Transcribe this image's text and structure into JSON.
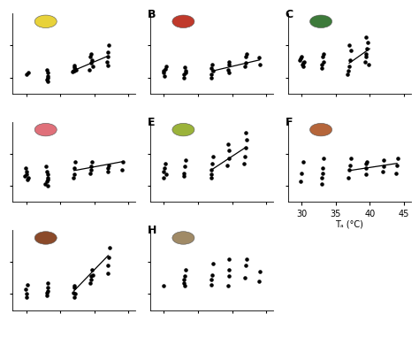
{
  "chart_data": [
    {
      "type": "scatter",
      "xlim": [
        28,
        46
      ],
      "ylim": [
        0,
        10
      ],
      "xticks": [
        30,
        35,
        40,
        45
      ],
      "yticks": [
        2,
        6
      ],
      "tick_labels": false,
      "series": [
        {
          "type": "scatter",
          "color": "#000000",
          "marker": "o",
          "x": [
            30.0,
            30.3,
            33.0,
            33.1,
            33.2,
            33.0,
            33.1,
            33.2,
            36.8,
            37.0,
            37.2,
            37.1,
            36.9,
            37.3,
            37.0,
            39.3,
            39.5,
            39.6,
            39.4,
            39.5,
            39.7,
            41.8,
            42.0,
            42.1,
            41.9,
            42.0
          ],
          "values": [
            2.4,
            2.6,
            1.8,
            2.2,
            2.6,
            3.0,
            2.0,
            1.5,
            2.7,
            2.9,
            3.1,
            3.3,
            2.8,
            3.0,
            3.5,
            3.0,
            3.8,
            4.2,
            4.6,
            5.0,
            3.4,
            4.0,
            5.2,
            6.0,
            4.6,
            3.5
          ]
        },
        {
          "type": "line",
          "color": "#000000",
          "line_style": "solid",
          "x": [
            37,
            42
          ],
          "values": [
            2.9,
            4.7
          ]
        }
      ]
    },
    {
      "type": "scatter",
      "title": "B",
      "xlim": [
        28,
        46
      ],
      "ylim": [
        0,
        10
      ],
      "xticks": [
        30,
        35,
        40,
        45
      ],
      "yticks": [
        2,
        6
      ],
      "tick_labels": false,
      "series": [
        {
          "type": "scatter",
          "color": "#000000",
          "marker": "o",
          "x": [
            30.0,
            30.2,
            30.4,
            29.9,
            30.1,
            33.0,
            33.2,
            33.1,
            33.0,
            33.2,
            37.0,
            37.2,
            36.9,
            37.1,
            37.0,
            39.4,
            39.6,
            39.5,
            39.5,
            41.9,
            42.0,
            42.1,
            42.0,
            44.0,
            44.1
          ],
          "values": [
            2.6,
            3.1,
            3.4,
            2.8,
            2.2,
            2.4,
            2.9,
            3.3,
            2.0,
            2.6,
            2.4,
            2.8,
            3.2,
            3.6,
            2.0,
            3.0,
            3.6,
            4.0,
            2.6,
            3.4,
            4.6,
            5.0,
            3.8,
            4.5,
            3.6
          ]
        },
        {
          "type": "line",
          "color": "#000000",
          "line_style": "solid",
          "x": [
            37,
            44
          ],
          "values": [
            2.8,
            4.2
          ]
        }
      ]
    },
    {
      "type": "scatter",
      "title": "C",
      "xlim": [
        28,
        46
      ],
      "ylim": [
        0,
        10
      ],
      "xticks": [
        30,
        35,
        40,
        45
      ],
      "yticks": [
        2,
        6
      ],
      "tick_labels": false,
      "series": [
        {
          "type": "scatter",
          "color": "#000000",
          "marker": "o",
          "x": [
            29.8,
            30.0,
            30.2,
            30.4,
            30.1,
            29.9,
            30.3,
            33.0,
            33.1,
            33.2,
            33.0,
            33.2,
            36.9,
            37.0,
            37.1,
            37.2,
            37.0,
            36.8,
            39.3,
            39.5,
            39.6,
            39.7,
            39.4,
            39.5,
            39.8
          ],
          "values": [
            4.2,
            4.6,
            3.8,
            4.0,
            3.6,
            4.4,
            3.4,
            3.6,
            4.6,
            5.0,
            3.2,
            4.0,
            2.8,
            3.4,
            4.2,
            5.4,
            6.0,
            2.4,
            4.0,
            5.0,
            5.6,
            6.4,
            4.6,
            7.0,
            3.6
          ]
        },
        {
          "type": "line",
          "color": "#000000",
          "line_style": "solid",
          "x": [
            37,
            40
          ],
          "values": [
            3.8,
            5.6
          ]
        }
      ]
    },
    {
      "type": "scatter",
      "xlim": [
        28,
        46
      ],
      "ylim": [
        0,
        10
      ],
      "xticks": [
        30,
        35,
        40,
        45
      ],
      "yticks": [
        2,
        6
      ],
      "tick_labels": false,
      "series": [
        {
          "type": "scatter",
          "color": "#000000",
          "marker": "o",
          "x": [
            29.8,
            30.0,
            30.2,
            30.1,
            29.9,
            30.3,
            32.8,
            33.0,
            33.1,
            33.2,
            33.0,
            33.1,
            32.9,
            33.2,
            37.0,
            37.1,
            37.2,
            36.9,
            39.4,
            39.5,
            39.6,
            39.5,
            42.0,
            42.1,
            41.9,
            44.0,
            44.1
          ],
          "values": [
            3.2,
            3.8,
            2.8,
            3.4,
            4.2,
            3.0,
            2.2,
            2.6,
            3.0,
            3.4,
            3.8,
            2.0,
            4.4,
            2.8,
            3.4,
            4.2,
            5.0,
            3.0,
            3.6,
            4.4,
            5.0,
            4.0,
            3.8,
            4.6,
            4.2,
            4.0,
            5.0
          ]
        },
        {
          "type": "line",
          "color": "#000000",
          "line_style": "solid",
          "x": [
            37,
            44
          ],
          "values": [
            3.9,
            5.0
          ]
        }
      ]
    },
    {
      "type": "scatter",
      "title": "E",
      "xlim": [
        28,
        46
      ],
      "ylim": [
        0,
        10
      ],
      "xticks": [
        30,
        35,
        40,
        45
      ],
      "yticks": [
        2,
        6
      ],
      "tick_labels": false,
      "series": [
        {
          "type": "scatter",
          "color": "#000000",
          "marker": "o",
          "x": [
            30.0,
            30.2,
            29.9,
            30.1,
            30.3,
            33.0,
            33.1,
            33.2,
            33.0,
            36.9,
            37.0,
            37.1,
            37.2,
            37.0,
            39.3,
            39.5,
            39.6,
            39.4,
            41.9,
            42.0,
            42.1,
            42.0,
            41.8
          ],
          "values": [
            3.8,
            4.8,
            3.0,
            4.2,
            3.4,
            3.6,
            4.4,
            5.2,
            3.2,
            3.0,
            4.0,
            4.8,
            5.6,
            3.4,
            4.6,
            5.4,
            6.4,
            7.2,
            5.6,
            6.8,
            7.8,
            8.6,
            4.8
          ]
        },
        {
          "type": "line",
          "color": "#000000",
          "line_style": "solid",
          "x": [
            37,
            42
          ],
          "values": [
            4.0,
            6.8
          ]
        }
      ]
    },
    {
      "type": "scatter",
      "title": "F",
      "x_label": "Tₐ (°C)",
      "xlim": [
        28,
        46
      ],
      "ylim": [
        0,
        10
      ],
      "xticks": [
        30,
        35,
        40,
        45
      ],
      "yticks": [
        2,
        6
      ],
      "tick_labels": "x",
      "series": [
        {
          "type": "scatter",
          "color": "#000000",
          "marker": "o",
          "x": [
            30.0,
            30.2,
            29.9,
            33.0,
            33.1,
            33.2,
            33.0,
            33.1,
            36.9,
            37.0,
            37.1,
            37.2,
            39.4,
            39.5,
            39.6,
            39.5,
            41.9,
            42.0,
            42.1,
            43.9,
            44.0,
            44.1
          ],
          "values": [
            3.6,
            5.0,
            2.6,
            3.0,
            4.2,
            5.4,
            2.2,
            3.6,
            3.0,
            4.0,
            4.6,
            5.4,
            3.4,
            4.2,
            5.0,
            4.8,
            3.8,
            4.4,
            5.2,
            3.6,
            4.6,
            5.4
          ]
        },
        {
          "type": "line",
          "color": "#000000",
          "line_style": "solid",
          "x": [
            37,
            44
          ],
          "values": [
            3.9,
            4.8
          ]
        }
      ]
    },
    {
      "type": "scatter",
      "xlim": [
        28,
        46
      ],
      "ylim": [
        0,
        10
      ],
      "xticks": [
        30,
        35,
        40,
        45
      ],
      "yticks": [
        2,
        6
      ],
      "tick_labels": false,
      "series": [
        {
          "type": "scatter",
          "color": "#000000",
          "marker": "o",
          "x": [
            30.0,
            30.2,
            29.9,
            30.1,
            33.0,
            33.1,
            33.2,
            33.0,
            33.1,
            36.9,
            37.0,
            37.1,
            37.2,
            37.0,
            39.4,
            39.5,
            39.6,
            39.5,
            39.7,
            41.9,
            42.0,
            42.1,
            42.2
          ],
          "values": [
            2.0,
            3.2,
            2.6,
            1.6,
            2.2,
            2.8,
            3.4,
            1.8,
            2.4,
            2.2,
            2.8,
            3.0,
            2.0,
            1.6,
            3.4,
            4.2,
            5.0,
            3.8,
            4.4,
            4.6,
            5.6,
            6.6,
            7.8
          ]
        },
        {
          "type": "line",
          "color": "#000000",
          "line_style": "solid",
          "x": [
            37,
            42
          ],
          "values": [
            2.4,
            6.8
          ]
        }
      ]
    },
    {
      "type": "scatter",
      "title": "H",
      "xlim": [
        28,
        46
      ],
      "ylim": [
        0,
        10
      ],
      "xticks": [
        30,
        35,
        40,
        45
      ],
      "yticks": [
        2,
        6
      ],
      "tick_labels": false,
      "series": [
        {
          "type": "scatter",
          "color": "#000000",
          "marker": "o",
          "x": [
            30.0,
            33.0,
            33.1,
            33.2,
            33.0,
            33.1,
            36.9,
            37.0,
            37.1,
            37.2,
            39.4,
            39.5,
            39.6,
            39.5,
            41.9,
            42.0,
            42.1,
            44.0,
            44.1
          ],
          "values": [
            3.0,
            3.4,
            4.2,
            5.0,
            3.8,
            3.0,
            3.2,
            3.8,
            4.4,
            5.8,
            3.0,
            4.2,
            5.0,
            6.4,
            4.0,
            5.6,
            6.4,
            3.6,
            4.8
          ]
        }
      ]
    }
  ]
}
